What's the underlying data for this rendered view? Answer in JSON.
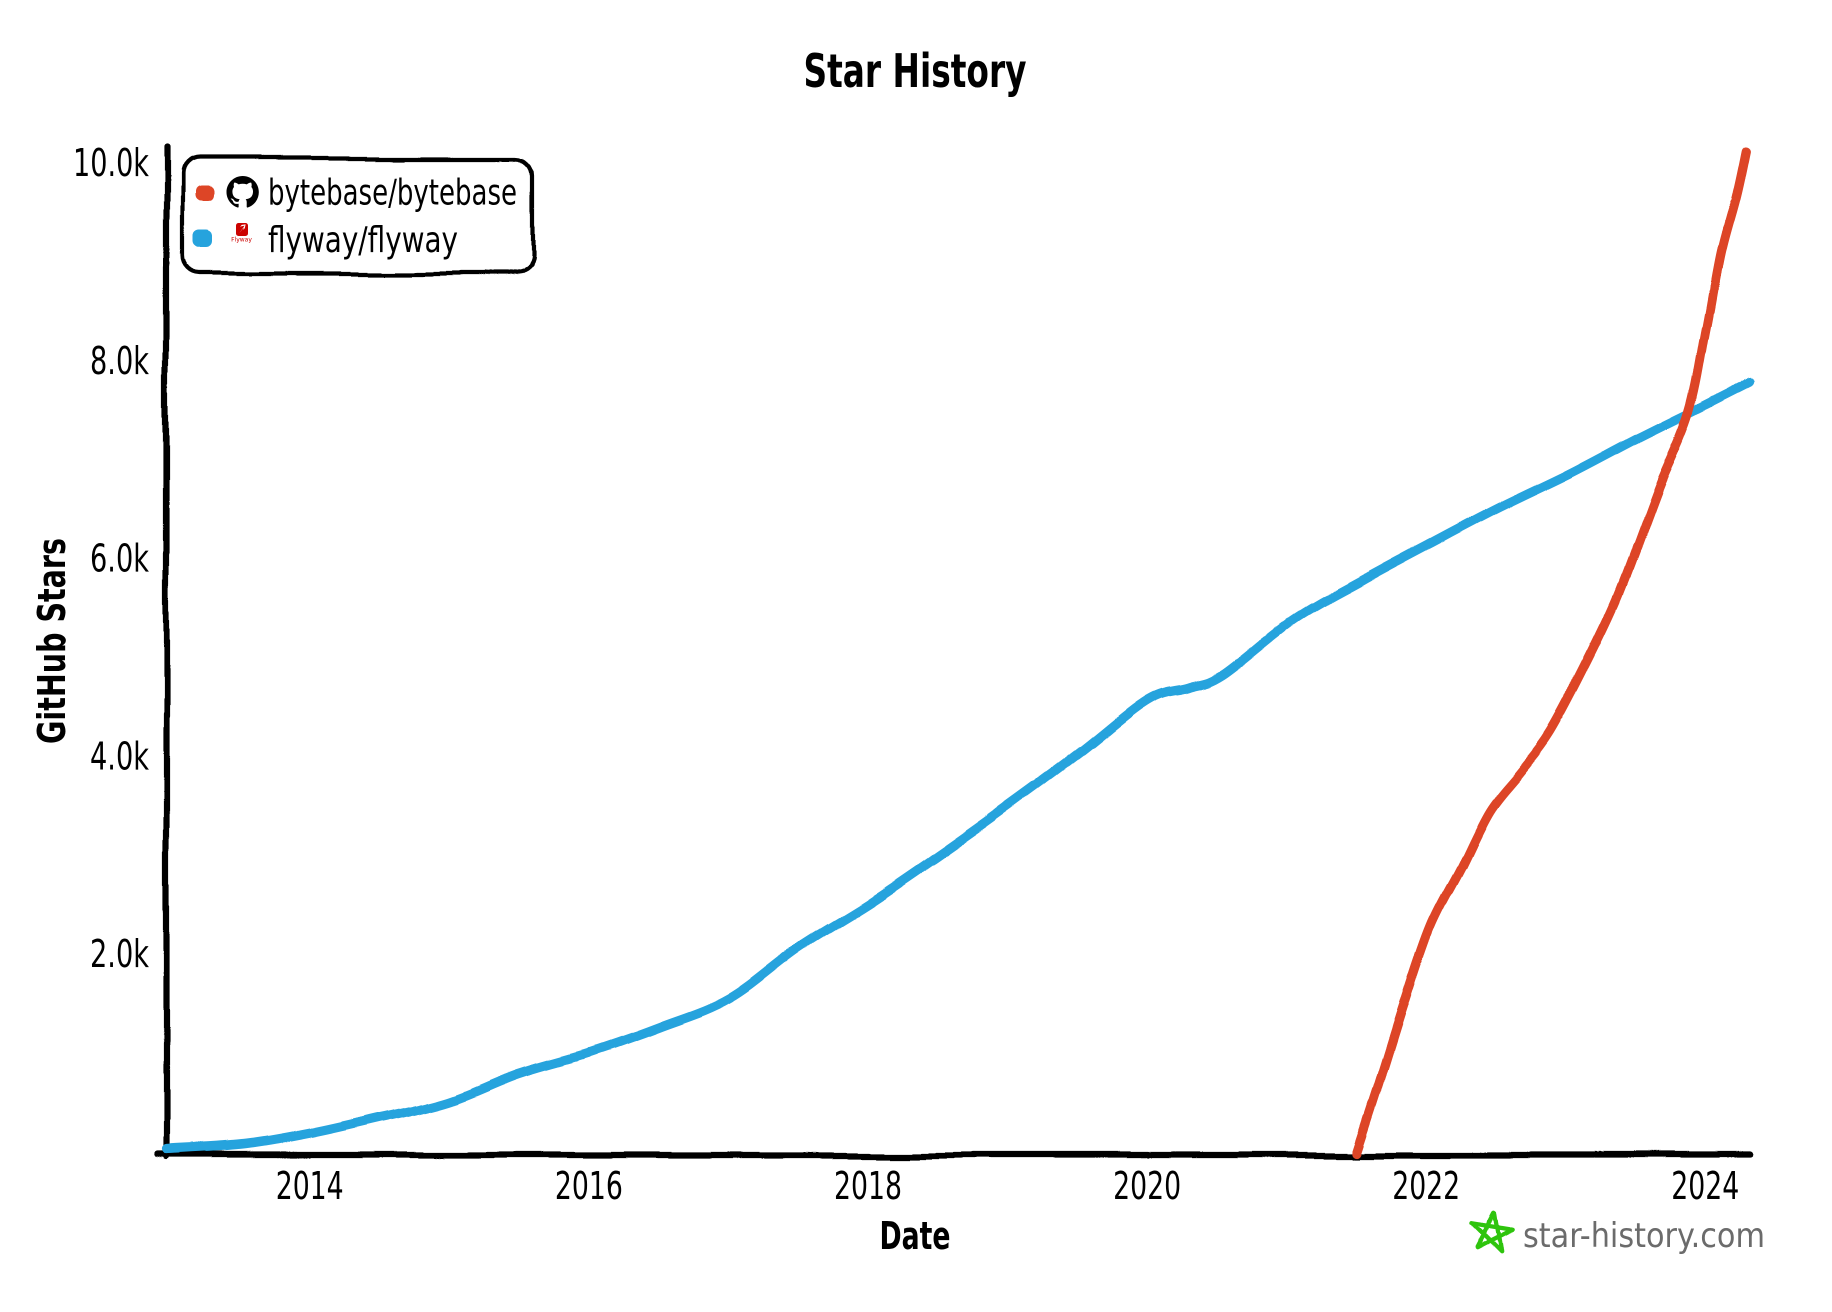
{
  "page": {
    "background": "#ffffff"
  },
  "watermark": {
    "label": "star-history.com",
    "text_color": "#6b6b6b",
    "star_color": "#2fc40e"
  },
  "chart_data": {
    "type": "line",
    "title": "Star History",
    "xlabel": "Date",
    "ylabel": "GitHub Stars",
    "grid": false,
    "legend_position": "top-left",
    "xlim": [
      2012.97,
      2024.32
    ],
    "ylim": [
      0,
      10200
    ],
    "x_ticks": [
      {
        "value": 2014,
        "label": "2014"
      },
      {
        "value": 2016,
        "label": "2016"
      },
      {
        "value": 2018,
        "label": "2018"
      },
      {
        "value": 2020,
        "label": "2020"
      },
      {
        "value": 2022,
        "label": "2022"
      },
      {
        "value": 2024,
        "label": "2024"
      }
    ],
    "y_ticks": [
      {
        "value": 2000,
        "label": "2.0k"
      },
      {
        "value": 4000,
        "label": "4.0k"
      },
      {
        "value": 6000,
        "label": "6.0k"
      },
      {
        "value": 8000,
        "label": "8.0k"
      },
      {
        "value": 10000,
        "label": "10.0k"
      }
    ],
    "series": [
      {
        "name": "bytebase/bytebase",
        "color": "#dd4528",
        "icon": "github-logo",
        "points": [
          [
            2021.5,
            10
          ],
          [
            2021.66,
            710
          ],
          [
            2021.84,
            1520
          ],
          [
            2022.03,
            2300
          ],
          [
            2022.24,
            2880
          ],
          [
            2022.45,
            3470
          ],
          [
            2022.67,
            3860
          ],
          [
            2022.88,
            4250
          ],
          [
            2023.13,
            4910
          ],
          [
            2023.36,
            5590
          ],
          [
            2023.56,
            6330
          ],
          [
            2023.68,
            6780
          ],
          [
            2023.89,
            7500
          ],
          [
            2024.01,
            8330
          ],
          [
            2024.11,
            9100
          ],
          [
            2024.22,
            9680
          ],
          [
            2024.29,
            10140
          ]
        ]
      },
      {
        "name": "flyway/flyway",
        "color": "#28a3dd",
        "icon": "flyway-logo",
        "icon_caption": "Flyway",
        "points": [
          [
            2012.97,
            30
          ],
          [
            2013.5,
            80
          ],
          [
            2014.0,
            200
          ],
          [
            2014.5,
            360
          ],
          [
            2015.0,
            530
          ],
          [
            2015.5,
            810
          ],
          [
            2016.0,
            1020
          ],
          [
            2016.5,
            1270
          ],
          [
            2017.0,
            1560
          ],
          [
            2017.5,
            2080
          ],
          [
            2018.0,
            2520
          ],
          [
            2018.5,
            3000
          ],
          [
            2019.0,
            3500
          ],
          [
            2019.5,
            4020
          ],
          [
            2020.0,
            4570
          ],
          [
            2020.3,
            4700
          ],
          [
            2020.55,
            4830
          ],
          [
            2021.05,
            5380
          ],
          [
            2021.53,
            5770
          ],
          [
            2022.03,
            6150
          ],
          [
            2022.53,
            6520
          ],
          [
            2023.03,
            6860
          ],
          [
            2023.53,
            7230
          ],
          [
            2024.0,
            7560
          ],
          [
            2024.32,
            7790
          ]
        ]
      }
    ]
  }
}
